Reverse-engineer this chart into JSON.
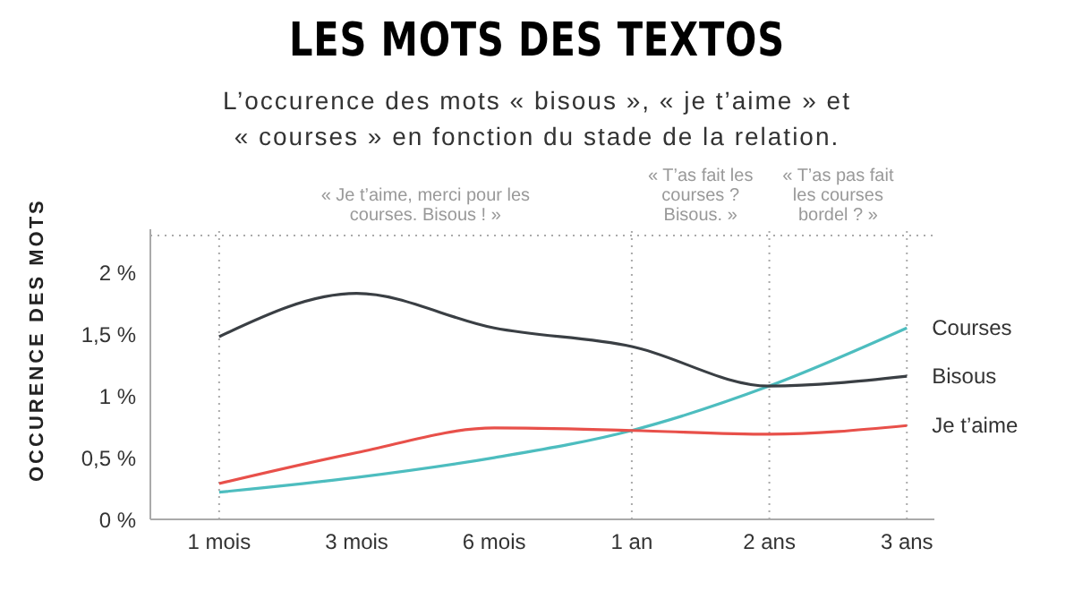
{
  "chart_data": {
    "type": "line",
    "title": "LES MOTS DES TEXTOS",
    "subtitle": "L’occurence des mots « bisous », « je t’aime » et « courses » en fonction du stade de la relation.",
    "ylabel": "OCCURENCE DES MOTS",
    "categories": [
      "1 mois",
      "3 mois",
      "6 mois",
      "1 an",
      "2 ans",
      "3 ans"
    ],
    "series": [
      {
        "name": "Courses",
        "color": "#4dbdbf",
        "values": [
          0.22,
          0.34,
          0.5,
          0.72,
          1.08,
          1.55
        ]
      },
      {
        "name": "Bisous",
        "color": "#3a3f44",
        "values": [
          1.48,
          1.83,
          1.55,
          1.4,
          1.08,
          1.16
        ]
      },
      {
        "name": "Je t’aime",
        "color": "#e8504a",
        "values": [
          0.29,
          0.54,
          0.74,
          0.72,
          0.69,
          0.76
        ]
      }
    ],
    "ylim": [
      0,
      2.35
    ],
    "yticks": [
      {
        "value": 0,
        "label": "0 %"
      },
      {
        "value": 0.5,
        "label": "0,5 %"
      },
      {
        "value": 1,
        "label": "1 %"
      },
      {
        "value": 1.5,
        "label": "1,5 %"
      },
      {
        "value": 2,
        "label": "2 %"
      }
    ],
    "annotations": [
      "« Je t’aime, merci pour les courses. Bisous ! »",
      "« T’as fait les courses ? Bisous. »",
      "« T’as pas fait les courses bordel ? »"
    ],
    "ref_lines": [
      {
        "axis": "x",
        "value": "1 mois",
        "line_style": "dotted",
        "color": "#aaaaaa"
      },
      {
        "axis": "x",
        "value": "1 an",
        "line_style": "dotted",
        "color": "#aaaaaa"
      },
      {
        "axis": "x",
        "value": "2 ans",
        "line_style": "dotted",
        "color": "#aaaaaa"
      },
      {
        "axis": "x",
        "value": "3 ans",
        "line_style": "dotted",
        "color": "#aaaaaa"
      },
      {
        "axis": "y",
        "value": 2.3,
        "line_style": "dotted",
        "color": "#aaaaaa"
      }
    ],
    "grid": false,
    "legend": false,
    "marker": "none",
    "line_style": "solid"
  }
}
